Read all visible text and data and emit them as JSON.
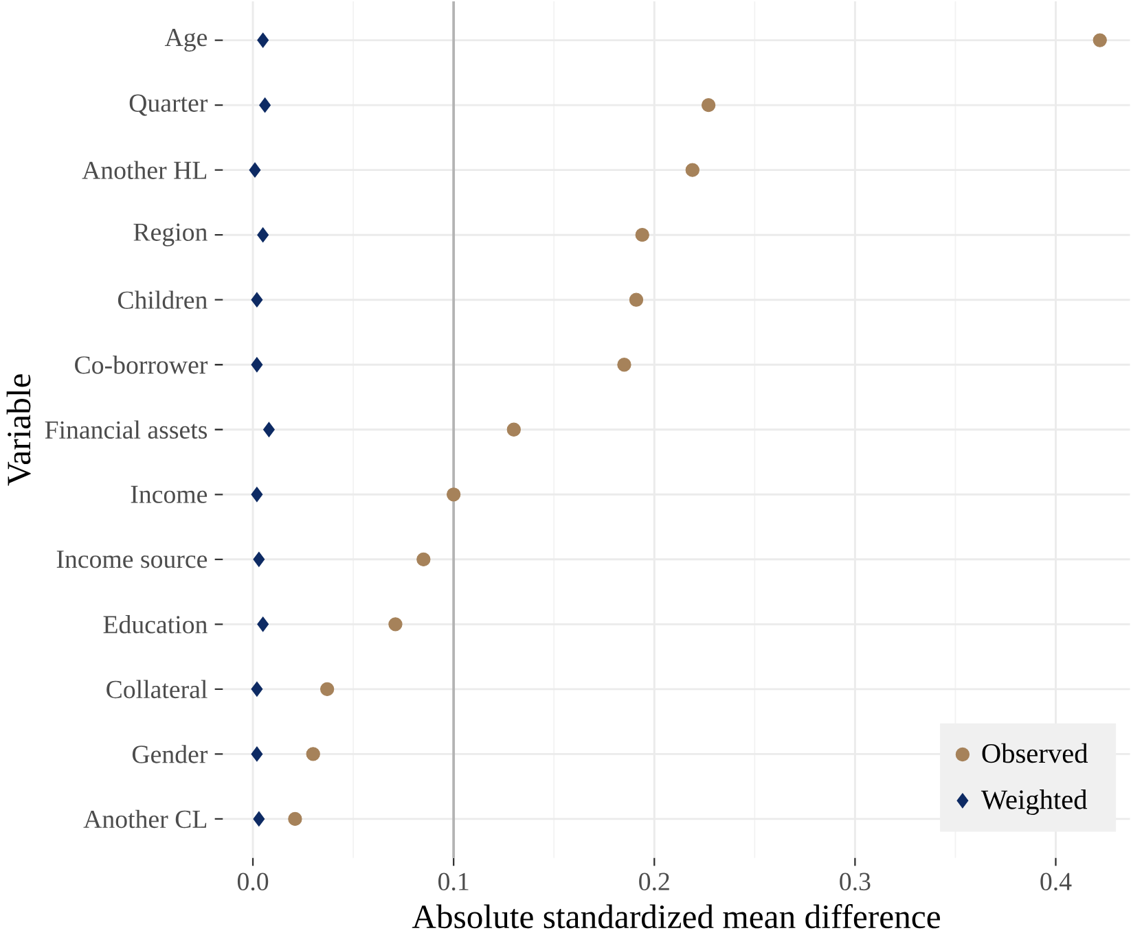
{
  "chart_data": {
    "type": "scatter",
    "xlabel": "Absolute standardized mean difference",
    "ylabel": "Variable",
    "categories": [
      "Age",
      "Quarter",
      "Another HL",
      "Region",
      "Children",
      "Co-borrower",
      "Financial assets",
      "Income",
      "Income source",
      "Education",
      "Collateral",
      "Gender",
      "Another CL"
    ],
    "orientation": "horizontal",
    "series": [
      {
        "name": "Observed",
        "color": "#a6825a",
        "marker": "circle",
        "values": [
          0.422,
          0.227,
          0.219,
          0.194,
          0.191,
          0.185,
          0.13,
          0.1,
          0.085,
          0.071,
          0.037,
          0.03,
          0.021
        ]
      },
      {
        "name": "Weighted",
        "color": "#0d2a63",
        "marker": "diamond",
        "values": [
          0.005,
          0.006,
          0.001,
          0.005,
          0.002,
          0.002,
          0.008,
          0.002,
          0.003,
          0.005,
          0.002,
          0.002,
          0.003
        ]
      }
    ],
    "xlim": [
      -0.015,
      0.437
    ],
    "xticks": [
      {
        "value": 0,
        "label": "0.0"
      },
      0.1,
      0.2,
      0.3,
      0.4
    ],
    "ref_lines": [
      {
        "axis": "x",
        "value": 0.1,
        "color": "#b3b3b3"
      }
    ],
    "grid": true,
    "legend": "bottom right"
  }
}
